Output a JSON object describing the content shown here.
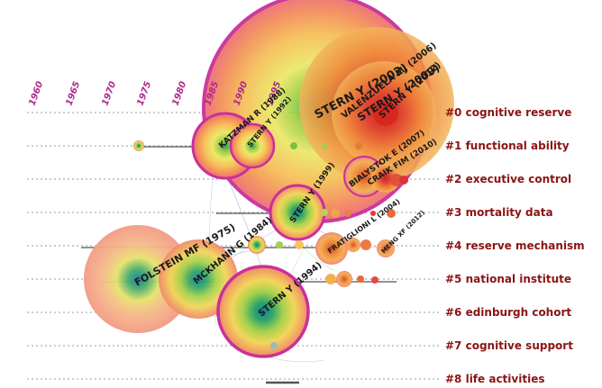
{
  "years": [
    "1960",
    "1965",
    "1970",
    "1975",
    "1980",
    "1985",
    "1990",
    "1995"
  ],
  "clusters": [
    "#0 cognitive reserve",
    "#1 functional ability",
    "#2 executive control",
    "#3 mortality data",
    "#4 reserve mechanism",
    "#5 national institute",
    "#6 edinburgh cohort",
    "#7 cognitive support",
    "#8 life activities"
  ],
  "nodes": [
    {
      "label": "STERN Y (2002)"
    },
    {
      "label": "VALENZUELA MJ (2006)"
    },
    {
      "label": "STERN Y (2009)"
    },
    {
      "label": "STERN Y (2012)"
    },
    {
      "label": "KATZMAN R (1988)"
    },
    {
      "label": "STERN Y (1992)"
    },
    {
      "label": "BIALYSTOK E (2007)"
    },
    {
      "label": "CRAIK FIM (2010)"
    },
    {
      "label": "STERN Y (1999)"
    },
    {
      "label": "FRATIGLIONI L (2004)"
    },
    {
      "label": "MENG XF (2012)"
    },
    {
      "label": "FOLSTEIN MF (1975)"
    },
    {
      "label": "MCKHANN G (1984)"
    },
    {
      "label": "STERN Y (1994)"
    }
  ],
  "colors": {
    "accent": "#c9309a",
    "cluster_label": "#8a1414",
    "year": "#b0288e"
  }
}
